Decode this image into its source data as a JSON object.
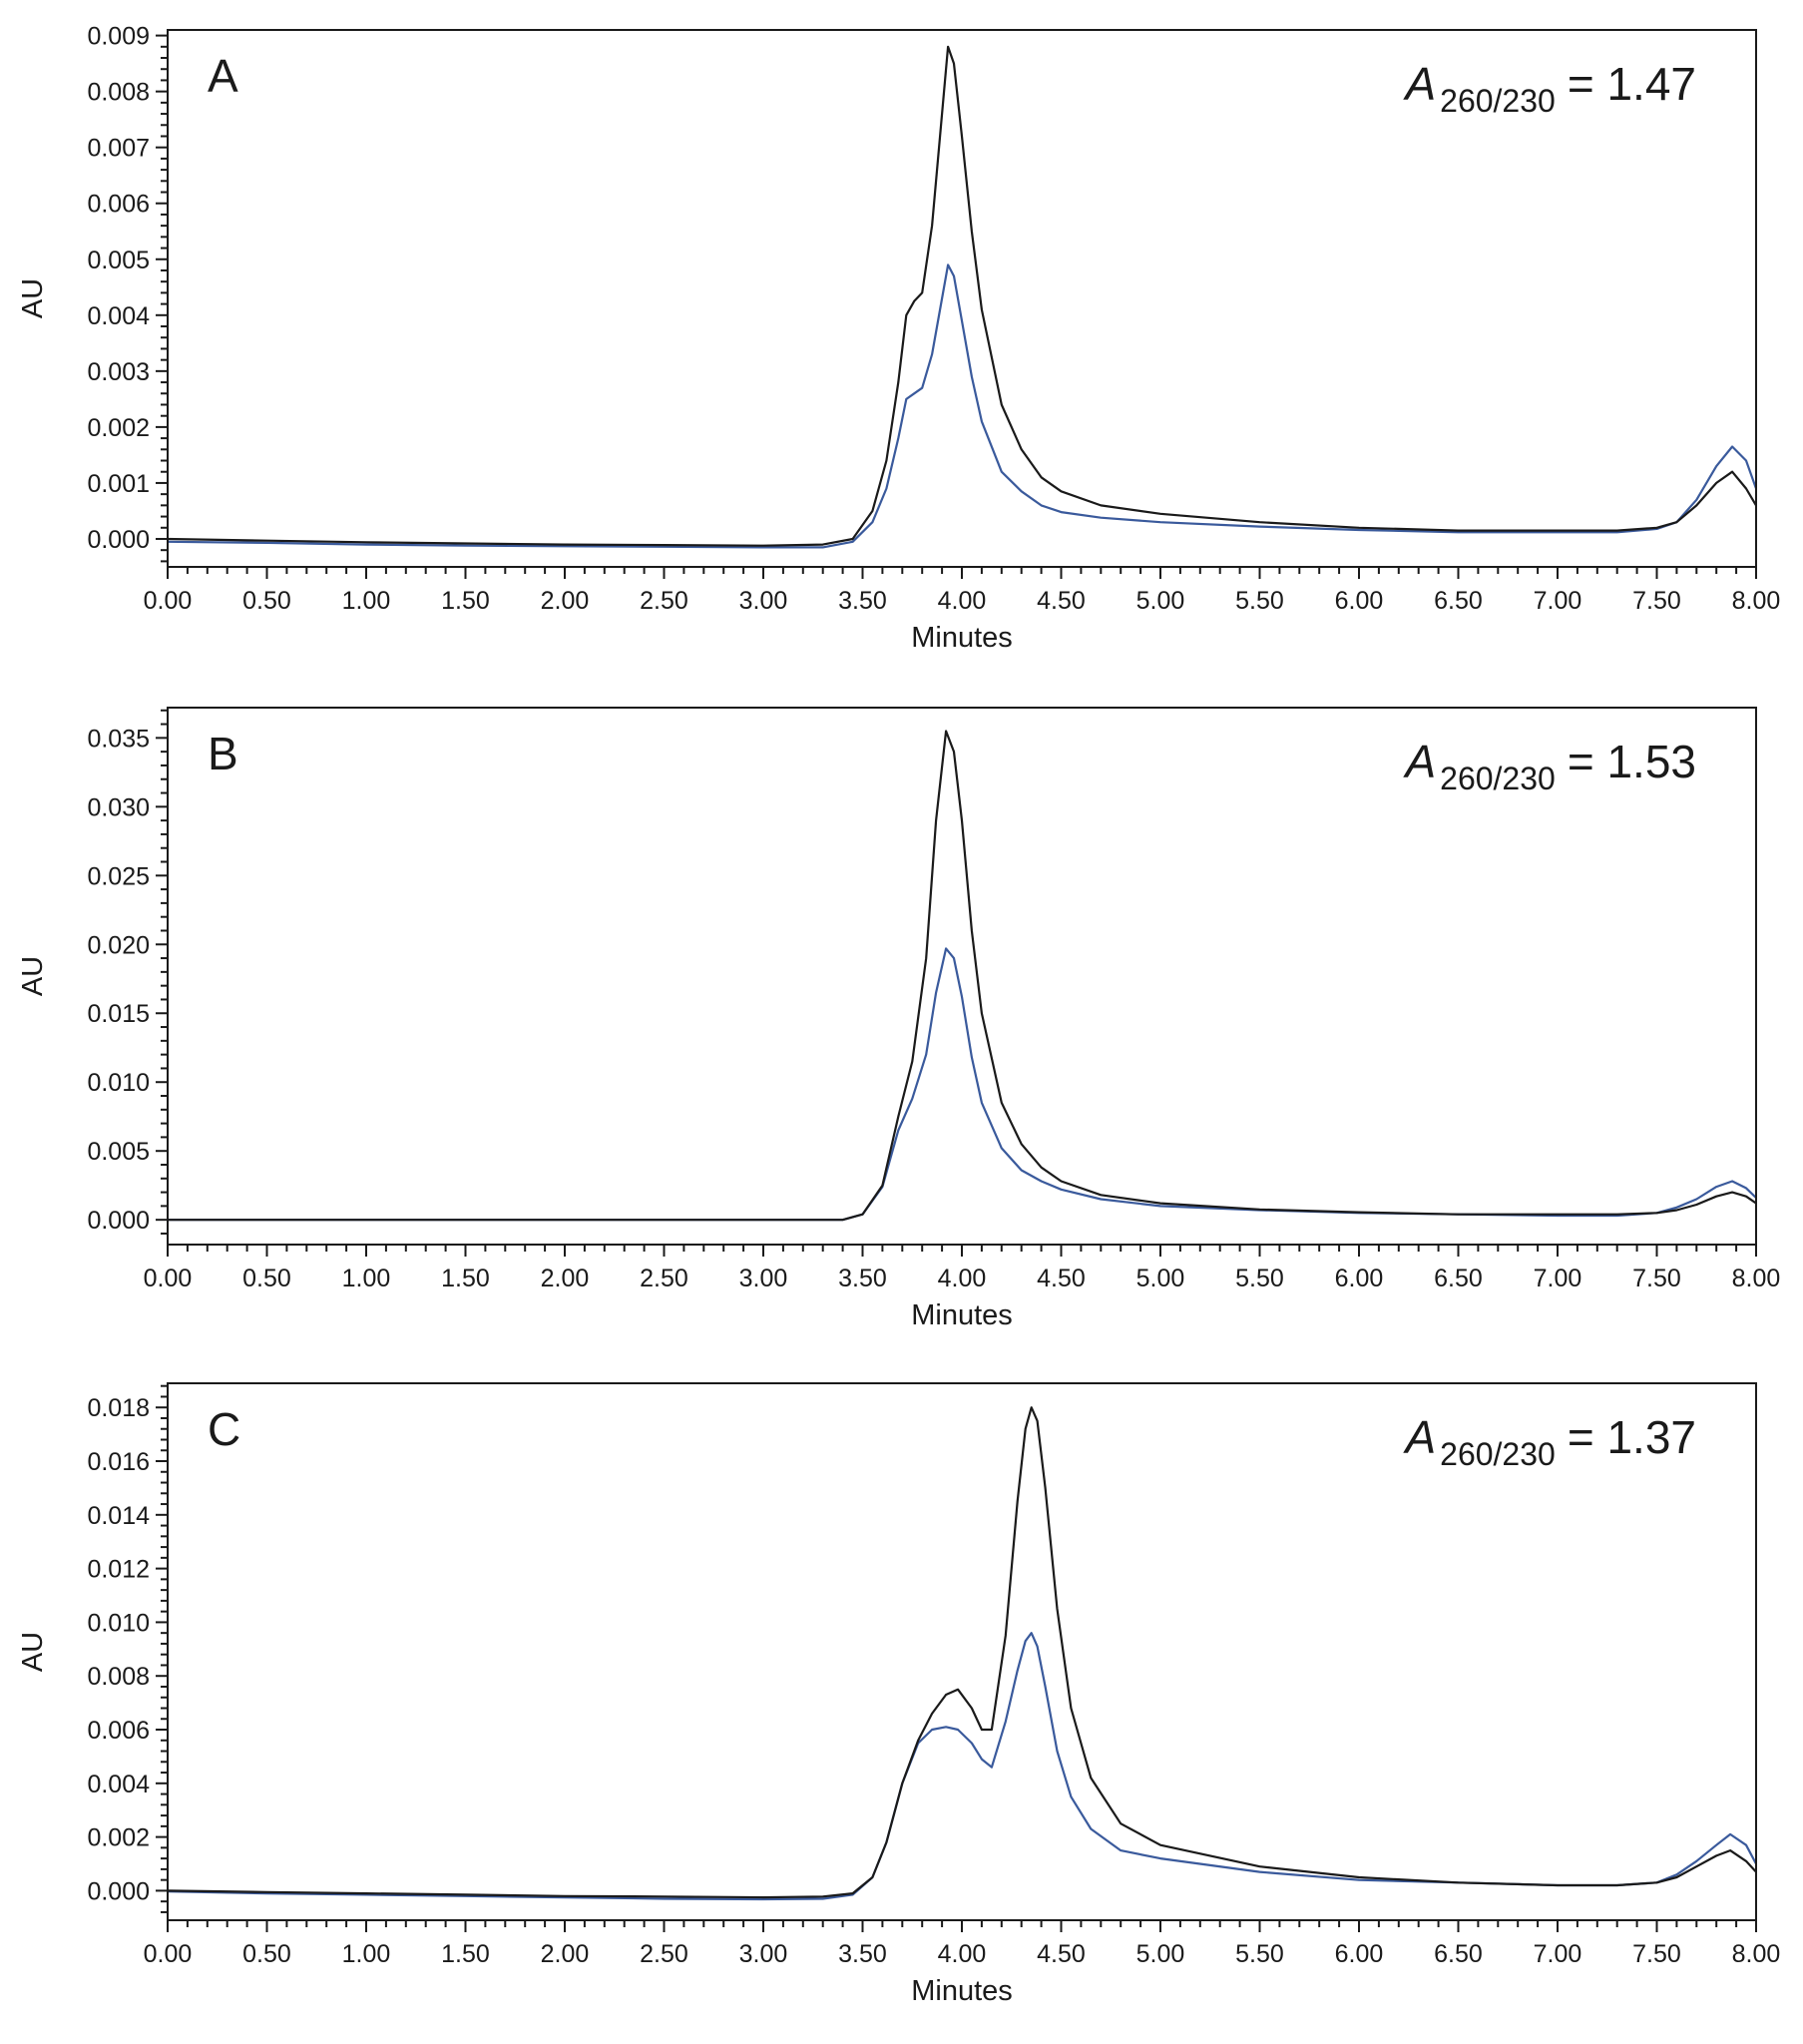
{
  "chart_data": [
    {
      "type": "line",
      "panel_label": "A",
      "annotation": {
        "symbol": "A",
        "subscript": "260/230",
        "text": "= 1.47"
      },
      "xlabel": "Minutes",
      "ylabel": "AU",
      "xlim": [
        0,
        8
      ],
      "ylim": [
        -0.0005,
        0.0091
      ],
      "xticks": [
        "0.00",
        "0.50",
        "1.00",
        "1.50",
        "2.00",
        "2.50",
        "3.00",
        "3.50",
        "4.00",
        "4.50",
        "5.00",
        "5.50",
        "6.00",
        "6.50",
        "7.00",
        "7.50",
        "8.00"
      ],
      "yticks": [
        "0.000",
        "0.001",
        "0.002",
        "0.003",
        "0.004",
        "0.005",
        "0.006",
        "0.007",
        "0.008",
        "0.009"
      ],
      "series": [
        {
          "color": "#1a1a1a",
          "x": [
            0,
            0.5,
            1,
            1.5,
            2,
            2.5,
            3,
            3.3,
            3.45,
            3.55,
            3.62,
            3.68,
            3.72,
            3.76,
            3.8,
            3.85,
            3.9,
            3.93,
            3.96,
            4.0,
            4.05,
            4.1,
            4.2,
            4.3,
            4.4,
            4.5,
            4.7,
            5,
            5.5,
            6,
            6.5,
            7,
            7.3,
            7.5,
            7.6,
            7.7,
            7.8,
            7.88,
            7.95,
            8
          ],
          "y": [
            0,
            -3e-05,
            -6e-05,
            -8e-05,
            -0.0001,
            -0.00011,
            -0.00012,
            -0.0001,
            0,
            0.0005,
            0.0014,
            0.0028,
            0.004,
            0.00425,
            0.0044,
            0.0056,
            0.0076,
            0.0088,
            0.0085,
            0.0072,
            0.0055,
            0.0041,
            0.0024,
            0.0016,
            0.0011,
            0.00085,
            0.0006,
            0.00045,
            0.0003,
            0.0002,
            0.00015,
            0.00015,
            0.00015,
            0.0002,
            0.0003,
            0.0006,
            0.001,
            0.0012,
            0.0009,
            0.0006
          ]
        },
        {
          "color": "#3a5a9c",
          "x": [
            0,
            0.5,
            1,
            1.5,
            2,
            2.5,
            3,
            3.3,
            3.45,
            3.55,
            3.62,
            3.68,
            3.72,
            3.76,
            3.8,
            3.85,
            3.9,
            3.93,
            3.96,
            4.0,
            4.05,
            4.1,
            4.2,
            4.3,
            4.4,
            4.5,
            4.7,
            5,
            5.5,
            6,
            6.5,
            7,
            7.3,
            7.5,
            7.6,
            7.7,
            7.8,
            7.88,
            7.95,
            8
          ],
          "y": [
            -5e-05,
            -7e-05,
            -0.0001,
            -0.00012,
            -0.00013,
            -0.00014,
            -0.00015,
            -0.00015,
            -5e-05,
            0.0003,
            0.0009,
            0.0018,
            0.0025,
            0.0026,
            0.0027,
            0.0033,
            0.0043,
            0.0049,
            0.0047,
            0.0039,
            0.0029,
            0.0021,
            0.0012,
            0.00085,
            0.0006,
            0.00048,
            0.00038,
            0.0003,
            0.00022,
            0.00016,
            0.00012,
            0.00012,
            0.00012,
            0.00018,
            0.0003,
            0.0007,
            0.0013,
            0.00165,
            0.0014,
            0.0009
          ]
        }
      ]
    },
    {
      "type": "line",
      "panel_label": "B",
      "annotation": {
        "symbol": "A",
        "subscript": "260/230",
        "text": "= 1.53"
      },
      "xlabel": "Minutes",
      "ylabel": "AU",
      "xlim": [
        0,
        8
      ],
      "ylim": [
        -0.0018,
        0.0372
      ],
      "xticks": [
        "0.00",
        "0.50",
        "1.00",
        "1.50",
        "2.00",
        "2.50",
        "3.00",
        "3.50",
        "4.00",
        "4.50",
        "5.00",
        "5.50",
        "6.00",
        "6.50",
        "7.00",
        "7.50",
        "8.00"
      ],
      "yticks": [
        "0.000",
        "0.005",
        "0.010",
        "0.015",
        "0.020",
        "0.025",
        "0.030",
        "0.035"
      ],
      "series": [
        {
          "color": "#1a1a1a",
          "x": [
            0,
            1,
            2,
            3,
            3.4,
            3.5,
            3.6,
            3.68,
            3.75,
            3.82,
            3.87,
            3.92,
            3.96,
            4.0,
            4.05,
            4.1,
            4.2,
            4.3,
            4.4,
            4.5,
            4.7,
            5,
            5.5,
            6,
            6.5,
            7,
            7.3,
            7.5,
            7.6,
            7.7,
            7.8,
            7.88,
            7.95,
            8
          ],
          "y": [
            0,
            0,
            0,
            0,
            0,
            0.0004,
            0.0025,
            0.0075,
            0.0115,
            0.019,
            0.029,
            0.0355,
            0.034,
            0.029,
            0.021,
            0.015,
            0.0085,
            0.0055,
            0.0038,
            0.0028,
            0.0018,
            0.0012,
            0.00075,
            0.00055,
            0.0004,
            0.0004,
            0.0004,
            0.0005,
            0.0007,
            0.0011,
            0.0017,
            0.002,
            0.0017,
            0.0012
          ]
        },
        {
          "color": "#3a5a9c",
          "x": [
            0,
            1,
            2,
            3,
            3.4,
            3.5,
            3.6,
            3.68,
            3.75,
            3.82,
            3.87,
            3.92,
            3.96,
            4.0,
            4.05,
            4.1,
            4.2,
            4.3,
            4.4,
            4.5,
            4.7,
            5,
            5.5,
            6,
            6.5,
            7,
            7.3,
            7.5,
            7.6,
            7.7,
            7.8,
            7.88,
            7.95,
            8
          ],
          "y": [
            0,
            0,
            0,
            0,
            0,
            0.0004,
            0.0024,
            0.0065,
            0.0088,
            0.012,
            0.0165,
            0.0197,
            0.019,
            0.0162,
            0.0118,
            0.0085,
            0.0052,
            0.0036,
            0.0028,
            0.0022,
            0.0015,
            0.001,
            0.0007,
            0.0005,
            0.0004,
            0.0003,
            0.0003,
            0.0005,
            0.0009,
            0.0015,
            0.0024,
            0.0028,
            0.0023,
            0.0016
          ]
        }
      ]
    },
    {
      "type": "line",
      "panel_label": "C",
      "annotation": {
        "symbol": "A",
        "subscript": "260/230",
        "text": "= 1.37"
      },
      "xlabel": "Minutes",
      "ylabel": "AU",
      "xlim": [
        0,
        8
      ],
      "ylim": [
        -0.0011,
        0.0189
      ],
      "xticks": [
        "0.00",
        "0.50",
        "1.00",
        "1.50",
        "2.00",
        "2.50",
        "3.00",
        "3.50",
        "4.00",
        "4.50",
        "5.00",
        "5.50",
        "6.00",
        "6.50",
        "7.00",
        "7.50",
        "8.00"
      ],
      "yticks": [
        "0.000",
        "0.002",
        "0.004",
        "0.006",
        "0.008",
        "0.010",
        "0.012",
        "0.014",
        "0.016",
        "0.018"
      ],
      "series": [
        {
          "color": "#1a1a1a",
          "x": [
            0,
            0.5,
            1,
            1.5,
            2,
            2.5,
            3,
            3.3,
            3.45,
            3.55,
            3.62,
            3.7,
            3.78,
            3.85,
            3.92,
            3.98,
            4.05,
            4.1,
            4.15,
            4.22,
            4.28,
            4.32,
            4.35,
            4.38,
            4.42,
            4.48,
            4.55,
            4.65,
            4.8,
            5,
            5.5,
            6,
            6.5,
            7,
            7.3,
            7.5,
            7.6,
            7.7,
            7.8,
            7.87,
            7.95,
            8
          ],
          "y": [
            0,
            -5e-05,
            -0.0001,
            -0.00015,
            -0.0002,
            -0.00022,
            -0.00025,
            -0.00022,
            -0.0001,
            0.0005,
            0.0018,
            0.004,
            0.0056,
            0.0066,
            0.0073,
            0.0075,
            0.0068,
            0.006,
            0.006,
            0.0095,
            0.0145,
            0.0172,
            0.018,
            0.0175,
            0.015,
            0.0105,
            0.0068,
            0.0042,
            0.0025,
            0.0017,
            0.0009,
            0.0005,
            0.0003,
            0.0002,
            0.0002,
            0.0003,
            0.0005,
            0.0009,
            0.0013,
            0.0015,
            0.0011,
            0.0007
          ]
        },
        {
          "color": "#3a5a9c",
          "x": [
            0,
            0.5,
            1,
            1.5,
            2,
            2.5,
            3,
            3.3,
            3.45,
            3.55,
            3.62,
            3.7,
            3.78,
            3.85,
            3.92,
            3.98,
            4.05,
            4.1,
            4.15,
            4.22,
            4.28,
            4.32,
            4.35,
            4.38,
            4.42,
            4.48,
            4.55,
            4.65,
            4.8,
            5,
            5.5,
            6,
            6.5,
            7,
            7.3,
            7.5,
            7.6,
            7.7,
            7.8,
            7.87,
            7.95,
            8
          ],
          "y": [
            -3e-05,
            -0.0001,
            -0.00015,
            -0.0002,
            -0.00025,
            -0.0003,
            -0.00032,
            -0.0003,
            -0.00015,
            0.0005,
            0.0018,
            0.004,
            0.0055,
            0.006,
            0.0061,
            0.006,
            0.0055,
            0.0049,
            0.0046,
            0.0063,
            0.0082,
            0.0093,
            0.0096,
            0.0091,
            0.0076,
            0.0052,
            0.0035,
            0.0023,
            0.0015,
            0.0012,
            0.0007,
            0.0004,
            0.0003,
            0.0002,
            0.0002,
            0.0003,
            0.0006,
            0.0011,
            0.0017,
            0.0021,
            0.0017,
            0.001
          ]
        }
      ]
    }
  ]
}
